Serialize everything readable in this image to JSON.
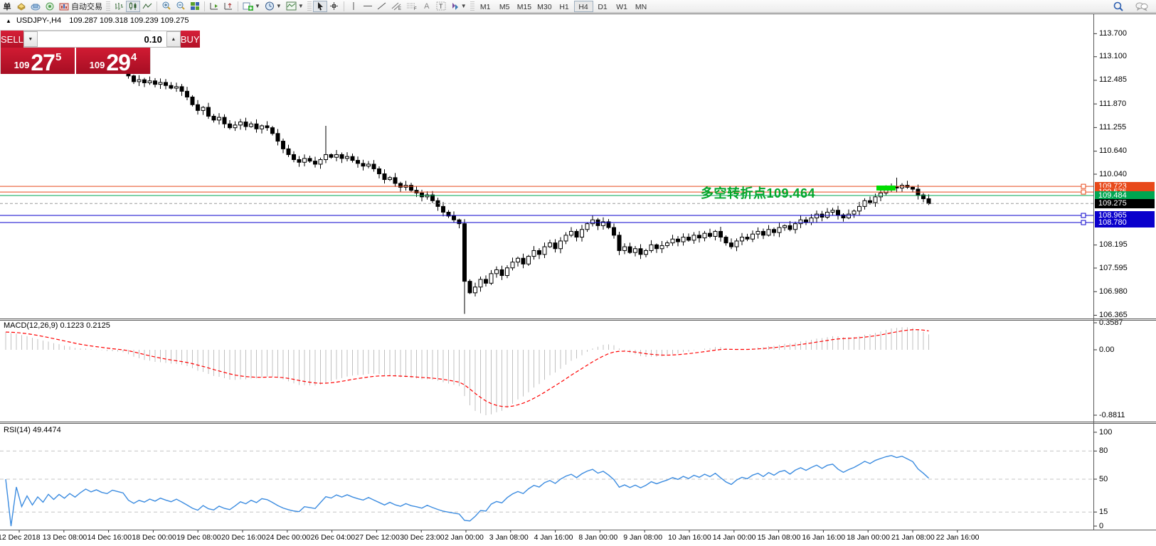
{
  "toolbar": {
    "new_order_label": "单",
    "autotrading_label": "自动交易",
    "timeframes": [
      "M1",
      "M5",
      "M15",
      "M30",
      "H1",
      "H4",
      "D1",
      "W1",
      "MN"
    ],
    "active_timeframe": "H4"
  },
  "chart": {
    "title": "USDJPY-,H4",
    "ohlc": "109.287 109.318 109.239 109.275",
    "open": "109.287",
    "high": "109.318",
    "low": "109.239",
    "close": "109.275"
  },
  "trade_panel": {
    "sell_label": "SELL",
    "buy_label": "BUY",
    "volume": "0.10",
    "sell_price_base": "109",
    "sell_price_big": "27",
    "sell_price_sup": "5",
    "buy_price_base": "109",
    "buy_price_big": "29",
    "buy_price_sup": "4",
    "panel_color": "#c01028"
  },
  "price_axis": {
    "labels": [
      "113.700",
      "113.100",
      "112.485",
      "111.870",
      "111.255",
      "110.640",
      "110.040",
      "108.195",
      "107.595",
      "106.980",
      "106.365"
    ],
    "tags": [
      {
        "value": "109.723",
        "bg": "#e8491a"
      },
      {
        "value": "109.575",
        "bg": "#e8491a"
      },
      {
        "value": "109.484",
        "bg": "#00a651"
      },
      {
        "value": "109.275",
        "bg": "#000000"
      },
      {
        "value": "108.965",
        "bg": "#0a00cc"
      },
      {
        "value": "108.780",
        "bg": "#0a00cc"
      }
    ]
  },
  "hlines": [
    {
      "price": 109.723,
      "color": "#e8491a",
      "style": "solid",
      "handle": true
    },
    {
      "price": 109.575,
      "color": "#e8491a",
      "style": "solid",
      "handle": true
    },
    {
      "price": 109.484,
      "color": "#00a651",
      "style": "solid",
      "handle": false
    },
    {
      "price": 109.275,
      "color": "#9a9a9a",
      "style": "dash",
      "handle": false
    },
    {
      "price": 108.965,
      "color": "#0a00cc",
      "style": "solid",
      "handle": true
    },
    {
      "price": 108.78,
      "color": "#0a00cc",
      "style": "solid",
      "handle": true
    }
  ],
  "annotation": {
    "text": "多空转折点109.464",
    "color": "#00a62a"
  },
  "marker": {
    "color": "#00dd00"
  },
  "macd_panel": {
    "label": "MACD(12,26,9) 0.1223 0.2125",
    "scale_max": "0.3587",
    "scale_zero": "0.00",
    "scale_min": "-0.8811",
    "histogram_color": "#c0c0c0",
    "signal_color": "#ff0000"
  },
  "rsi_panel": {
    "label": "RSI(14) 49.4474",
    "levels": [
      100,
      80,
      50,
      15,
      0
    ],
    "dashed_levels": [
      80,
      50,
      15
    ],
    "line_color": "#3c8ce0"
  },
  "time_axis": {
    "labels": [
      "12 Dec 2018",
      "13 Dec 08:00",
      "14 Dec 16:00",
      "18 Dec 00:00",
      "19 Dec 08:00",
      "20 Dec 16:00",
      "24 Dec 00:00",
      "26 Dec 04:00",
      "27 Dec 12:00",
      "30 Dec 23:00",
      "2 Jan 00:00",
      "3 Jan 08:00",
      "4 Jan 16:00",
      "8 Jan 00:00",
      "9 Jan 08:00",
      "10 Jan 16:00",
      "14 Jan 00:00",
      "15 Jan 08:00",
      "16 Jan 16:00",
      "18 Jan 00:00",
      "21 Jan 08:00",
      "22 Jan 16:00"
    ]
  },
  "chart_data": {
    "type": "candlestick",
    "symbol": "USDJPY",
    "timeframe": "H4",
    "visible_price_range": [
      106.365,
      113.7
    ],
    "closes": [
      113.32,
      113.25,
      113.3,
      113.18,
      113.22,
      113.1,
      113.15,
      113.05,
      113.12,
      113.0,
      113.06,
      112.95,
      113.02,
      112.9,
      112.98,
      113.05,
      112.96,
      113.0,
      112.92,
      112.88,
      112.94,
      112.9,
      112.86,
      112.6,
      112.45,
      112.5,
      112.42,
      112.47,
      112.38,
      112.43,
      112.35,
      112.28,
      112.32,
      112.2,
      112.05,
      111.85,
      111.7,
      111.78,
      111.55,
      111.45,
      111.52,
      111.35,
      111.25,
      111.32,
      111.4,
      111.28,
      111.35,
      111.22,
      111.3,
      111.25,
      111.1,
      110.9,
      110.7,
      110.55,
      110.42,
      110.35,
      110.45,
      110.38,
      110.3,
      110.42,
      110.55,
      110.48,
      110.55,
      110.45,
      110.5,
      110.4,
      110.32,
      110.25,
      110.3,
      110.18,
      110.05,
      109.9,
      109.95,
      109.8,
      109.7,
      109.75,
      109.62,
      109.55,
      109.45,
      109.5,
      109.35,
      109.2,
      109.05,
      108.95,
      108.85,
      108.75,
      107.25,
      106.95,
      107.1,
      107.3,
      107.2,
      107.45,
      107.55,
      107.4,
      107.6,
      107.75,
      107.85,
      107.7,
      107.9,
      108.05,
      107.95,
      108.15,
      108.25,
      108.1,
      108.3,
      108.45,
      108.55,
      108.4,
      108.6,
      108.75,
      108.85,
      108.7,
      108.8,
      108.65,
      108.45,
      108.05,
      108.15,
      108.0,
      108.1,
      107.95,
      108.05,
      108.2,
      108.1,
      108.18,
      108.25,
      108.35,
      108.28,
      108.4,
      108.32,
      108.45,
      108.38,
      108.5,
      108.42,
      108.55,
      108.4,
      108.25,
      108.15,
      108.3,
      108.4,
      108.35,
      108.48,
      108.55,
      108.45,
      108.6,
      108.52,
      108.65,
      108.7,
      108.6,
      108.75,
      108.85,
      108.78,
      108.9,
      109.0,
      108.92,
      109.05,
      109.1,
      108.98,
      108.9,
      109.0,
      109.08,
      109.2,
      109.35,
      109.3,
      109.45,
      109.55,
      109.65,
      109.72,
      109.68,
      109.75,
      109.7,
      109.65,
      109.5,
      109.4,
      109.275
    ],
    "wick_overrides": {
      "60": {
        "high": 111.3
      },
      "86": {
        "low": 106.4
      },
      "167": {
        "high": 109.95
      }
    },
    "macd_params": [
      12,
      26,
      9
    ],
    "rsi_params": [
      14
    ]
  }
}
